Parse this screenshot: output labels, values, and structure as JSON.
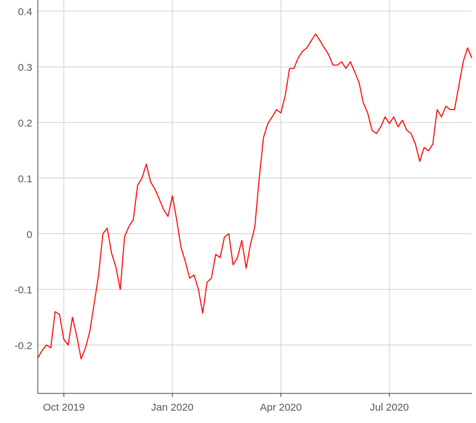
{
  "chart_data": {
    "type": "line",
    "x": [
      2019.69,
      2019.7,
      2019.71,
      2019.72,
      2019.73,
      2019.74,
      2019.75,
      2019.76,
      2019.77,
      2019.78,
      2019.79,
      2019.8,
      2019.81,
      2019.82,
      2019.83,
      2019.84,
      2019.85,
      2019.86,
      2019.87,
      2019.88,
      2019.89,
      2019.9,
      2019.91,
      2019.92,
      2019.93,
      2019.94,
      2019.95,
      2019.96,
      2019.97,
      2019.98,
      2019.99,
      2020.0,
      2020.01,
      2020.02,
      2020.03,
      2020.04,
      2020.05,
      2020.06,
      2020.07,
      2020.08,
      2020.09,
      2020.1,
      2020.11,
      2020.12,
      2020.13,
      2020.14,
      2020.15,
      2020.16,
      2020.17,
      2020.18,
      2020.19,
      2020.2,
      2020.21,
      2020.22,
      2020.23,
      2020.24,
      2020.25,
      2020.26,
      2020.27,
      2020.28,
      2020.29,
      2020.3,
      2020.31,
      2020.32,
      2020.33,
      2020.34,
      2020.35,
      2020.36,
      2020.37,
      2020.38,
      2020.39,
      2020.4,
      2020.41,
      2020.42,
      2020.43,
      2020.44,
      2020.45,
      2020.46,
      2020.47,
      2020.48,
      2020.49,
      2020.5,
      2020.51,
      2020.52,
      2020.53,
      2020.54,
      2020.55,
      2020.56,
      2020.57,
      2020.58,
      2020.59,
      2020.6,
      2020.61,
      2020.62,
      2020.63,
      2020.64,
      2020.65,
      2020.66,
      2020.67,
      2020.68,
      2020.69
    ],
    "series": [
      {
        "color": "#ff0000",
        "values": [
          -0.223,
          -0.21,
          -0.2,
          -0.205,
          -0.14,
          -0.145,
          -0.19,
          -0.2,
          -0.15,
          -0.185,
          -0.225,
          -0.205,
          -0.175,
          -0.125,
          -0.075,
          0.0,
          0.01,
          -0.035,
          -0.06,
          -0.1,
          -0.005,
          0.013,
          0.025,
          0.087,
          0.1,
          0.125,
          0.093,
          0.08,
          0.062,
          0.043,
          0.031,
          0.068,
          0.025,
          -0.025,
          -0.05,
          -0.08,
          -0.074,
          -0.1,
          -0.143,
          -0.087,
          -0.08,
          -0.037,
          -0.043,
          -0.006,
          0.0,
          -0.056,
          -0.043,
          -0.012,
          -0.062,
          -0.019,
          0.012,
          0.099,
          0.173,
          0.198,
          0.21,
          0.223,
          0.217,
          0.248,
          0.297,
          0.297,
          0.316,
          0.328,
          0.334,
          0.347,
          0.359,
          0.347,
          0.334,
          0.322,
          0.303,
          0.303,
          0.309,
          0.297,
          0.309,
          0.291,
          0.272,
          0.235,
          0.217,
          0.186,
          0.18,
          0.192,
          0.21,
          0.198,
          0.21,
          0.192,
          0.204,
          0.186,
          0.18,
          0.161,
          0.13,
          0.155,
          0.149,
          0.161,
          0.223,
          0.21,
          0.229,
          0.223,
          0.223,
          0.266,
          0.309,
          0.334,
          0.316
        ]
      }
    ],
    "xlim": [
      2019.69,
      2020.69
    ],
    "xticks": [
      {
        "value": 2019.75,
        "label": "Oct 2019"
      },
      {
        "value": 2020.0,
        "label": "Jan 2020"
      },
      {
        "value": 2020.25,
        "label": "Apr 2020"
      },
      {
        "value": 2020.5,
        "label": "Jul 2020"
      }
    ],
    "ylim": [
      -0.287,
      0.42
    ],
    "yticks": [
      -0.2,
      -0.1,
      0,
      0.1,
      0.2,
      0.3,
      0.4
    ],
    "grid": true
  }
}
